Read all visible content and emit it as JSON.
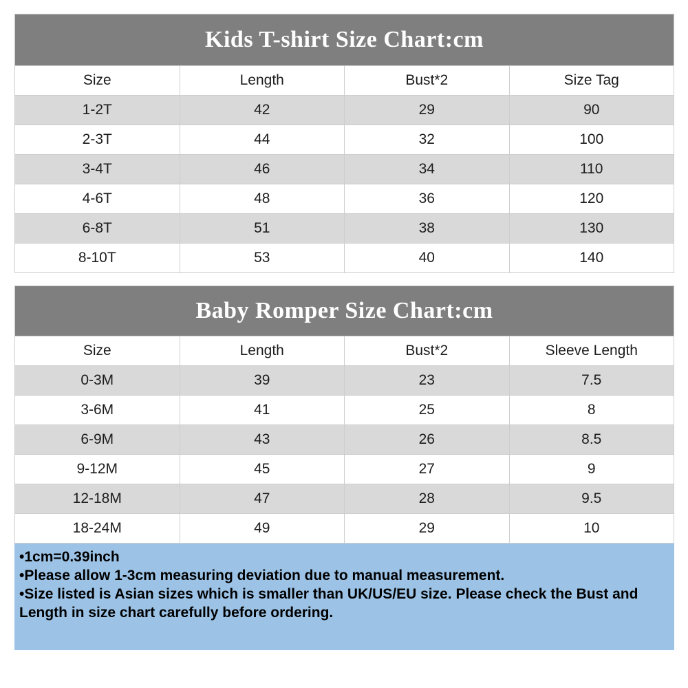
{
  "page": {
    "background": "#ffffff"
  },
  "colors": {
    "title_band_bg": "#7f7f7f",
    "title_text": "#ffffff",
    "row_alt_bg": "#d9d9d9",
    "row_bg": "#ffffff",
    "grid_line": "#cdcdcd",
    "notes_bg": "#9cc3e6",
    "body_text": "#1c1c1c"
  },
  "tables": [
    {
      "title": "Kids T-shirt Size Chart:cm",
      "columns": [
        "Size",
        "Length",
        "Bust*2",
        "Size Tag"
      ],
      "rows": [
        [
          "1-2T",
          "42",
          "29",
          "90"
        ],
        [
          "2-3T",
          "44",
          "32",
          "100"
        ],
        [
          "3-4T",
          "46",
          "34",
          "110"
        ],
        [
          "4-6T",
          "48",
          "36",
          "120"
        ],
        [
          "6-8T",
          "51",
          "38",
          "130"
        ],
        [
          "8-10T",
          "53",
          "40",
          "140"
        ]
      ]
    },
    {
      "title": "Baby Romper Size Chart:cm",
      "columns": [
        "Size",
        "Length",
        "Bust*2",
        "Sleeve Length"
      ],
      "rows": [
        [
          "0-3M",
          "39",
          "23",
          "7.5"
        ],
        [
          "3-6M",
          "41",
          "25",
          "8"
        ],
        [
          "6-9M",
          "43",
          "26",
          "8.5"
        ],
        [
          "9-12M",
          "45",
          "27",
          "9"
        ],
        [
          "12-18M",
          "47",
          "28",
          "9.5"
        ],
        [
          "18-24M",
          "49",
          "29",
          "10"
        ]
      ]
    }
  ],
  "notes": {
    "items": [
      "•1cm=0.39inch",
      "•Please allow 1-3cm measuring deviation due to manual measurement.",
      "•Size listed is Asian sizes which is smaller than UK/US/EU size. Please check the Bust and Length in size chart carefully before ordering."
    ]
  }
}
